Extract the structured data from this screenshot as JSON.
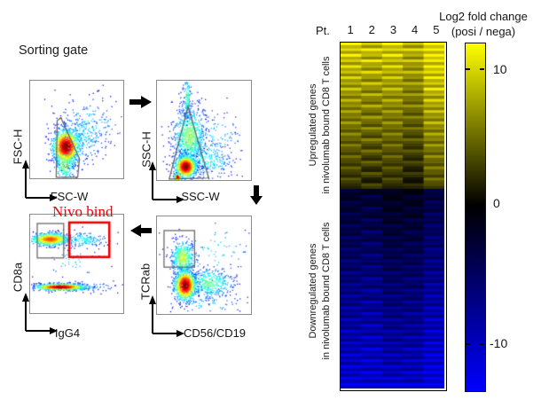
{
  "figure": {
    "title": "Sorting gate",
    "flow_panel": {
      "plots": [
        {
          "id": "fsc",
          "y_label": "FSC-H",
          "x_label": "FSC-W"
        },
        {
          "id": "ssc",
          "y_label": "SSC-H",
          "x_label": "SSC-W"
        },
        {
          "id": "cd8a",
          "y_label": "CD8a",
          "x_label": "IgG4",
          "gate_annotation": "Nivo bind"
        },
        {
          "id": "tcrab",
          "y_label": "TCRab",
          "x_label": "CD56/CD19"
        }
      ],
      "annotation_color": "#ee0000"
    },
    "heatmap_panel": {
      "patient_header": "Pt.",
      "columns": [
        "1",
        "2",
        "3",
        "4",
        "5"
      ],
      "groups": [
        {
          "label_line1": "Upregulated genes",
          "label_line2": "in nivolumab bound CD8 T cells"
        },
        {
          "label_line1": "Downregulated genes",
          "label_line2": "in nivolumab bound CD8 T cells"
        }
      ],
      "colorbar": {
        "title_line1": "Log2 fold change",
        "title_line2": "(posi / nega)",
        "tick_labels": [
          "10",
          "0",
          "-10"
        ],
        "tick_values": [
          10,
          0,
          -10
        ],
        "max_color": "#ffff00",
        "zero_color": "#000000",
        "min_color": "#0000ff"
      }
    }
  },
  "chart_data": [
    {
      "type": "heatmap",
      "title": "Log2 fold change (posi / nega)",
      "columns": [
        "Pt.1",
        "Pt.2",
        "Pt.3",
        "Pt.4",
        "Pt.5"
      ],
      "value_scale": {
        "vmin": -13.2,
        "vmax": 12.5,
        "tick_values": [
          10,
          0,
          -10
        ],
        "colormap": "blue-black-yellow"
      },
      "row_groups": [
        {
          "name": "Upregulated genes in nivolumab bound CD8 T cells",
          "values": [
            [
              11.7,
              9.2,
              11.6,
              8.7,
              12.5
            ],
            [
              9.9,
              11.3,
              9.8,
              10.1,
              11.3
            ],
            [
              11.0,
              8.5,
              10.9,
              8.0,
              12.5
            ],
            [
              9.2,
              10.6,
              9.1,
              9.4,
              10.6
            ],
            [
              10.4,
              7.9,
              10.3,
              7.4,
              11.9
            ],
            [
              8.6,
              10.0,
              8.5,
              8.8,
              10.0
            ],
            [
              9.7,
              7.2,
              9.6,
              6.7,
              11.2
            ],
            [
              7.9,
              9.3,
              7.8,
              8.1,
              9.3
            ],
            [
              9.1,
              6.6,
              9.0,
              6.1,
              10.6
            ],
            [
              7.2,
              8.6,
              7.1,
              7.4,
              8.6
            ],
            [
              8.4,
              5.9,
              8.3,
              5.4,
              9.9
            ],
            [
              6.6,
              8.0,
              6.5,
              6.8,
              8.0
            ],
            [
              7.7,
              5.2,
              7.6,
              4.7,
              9.2
            ],
            [
              5.9,
              7.3,
              5.8,
              6.1,
              7.3
            ],
            [
              7.1,
              4.6,
              7.0,
              4.1,
              8.6
            ],
            [
              5.3,
              6.7,
              5.2,
              5.5,
              6.7
            ],
            [
              6.4,
              3.9,
              6.3,
              3.4,
              7.9
            ],
            [
              4.6,
              6.0,
              4.5,
              4.8,
              6.0
            ],
            [
              5.8,
              3.3,
              5.7,
              2.8,
              7.3
            ],
            [
              3.9,
              5.3,
              3.8,
              4.1,
              5.3
            ],
            [
              5.1,
              2.6,
              5.0,
              2.1,
              6.6
            ],
            [
              3.3,
              4.7,
              3.2,
              3.5,
              4.7
            ],
            [
              4.4,
              1.9,
              4.3,
              1.4,
              5.9
            ],
            [
              2.6,
              4.0,
              2.5,
              2.8,
              4.0
            ],
            [
              3.8,
              1.3,
              3.7,
              0.8,
              5.3
            ],
            [
              2.0,
              3.4,
              1.9,
              2.2,
              3.4
            ]
          ]
        },
        {
          "name": "Downregulated genes in nivolumab bound CD8 T cells",
          "values": [
            [
              -2.9,
              -1.5,
              -1.9,
              -0.6,
              -4.1
            ],
            [
              -1.8,
              -3.9,
              -0.8,
              -2.5,
              -3.0
            ],
            [
              -3.5,
              -2.1,
              -2.5,
              -1.2,
              -4.7
            ],
            [
              -2.3,
              -4.4,
              -1.3,
              -3.0,
              -3.5
            ],
            [
              -4.0,
              -2.6,
              -3.0,
              -1.7,
              -5.2
            ],
            [
              -2.9,
              -5.0,
              -1.9,
              -3.6,
              -4.1
            ],
            [
              -4.6,
              -3.2,
              -3.6,
              -2.3,
              -5.8
            ],
            [
              -3.5,
              -5.6,
              -2.5,
              -4.2,
              -4.7
            ],
            [
              -5.1,
              -3.7,
              -4.1,
              -2.8,
              -6.3
            ],
            [
              -4.0,
              -6.1,
              -3.0,
              -4.7,
              -5.2
            ],
            [
              -5.7,
              -4.3,
              -4.7,
              -3.4,
              -6.9
            ],
            [
              -4.6,
              -6.7,
              -3.6,
              -5.3,
              -5.8
            ],
            [
              -6.3,
              -4.9,
              -5.3,
              -4.0,
              -7.5
            ],
            [
              -5.1,
              -7.2,
              -4.1,
              -5.8,
              -6.3
            ],
            [
              -6.8,
              -5.4,
              -5.8,
              -4.5,
              -8.0
            ],
            [
              -5.7,
              -7.8,
              -4.7,
              -6.4,
              -6.9
            ],
            [
              -7.4,
              -6.0,
              -6.4,
              -5.1,
              -8.6
            ],
            [
              -6.3,
              -8.4,
              -5.3,
              -7.0,
              -7.5
            ],
            [
              -7.9,
              -6.5,
              -6.9,
              -5.6,
              -9.1
            ],
            [
              -6.8,
              -8.9,
              -5.8,
              -7.5,
              -8.0
            ],
            [
              -8.5,
              -7.1,
              -7.5,
              -6.2,
              -9.7
            ],
            [
              -7.4,
              -9.5,
              -6.4,
              -8.1,
              -8.6
            ],
            [
              -9.1,
              -7.7,
              -8.1,
              -6.8,
              -10.3
            ],
            [
              -7.9,
              -10.0,
              -6.9,
              -8.6,
              -9.1
            ],
            [
              -9.6,
              -8.2,
              -8.6,
              -7.3,
              -10.8
            ],
            [
              -8.5,
              -10.6,
              -7.5,
              -9.2,
              -9.7
            ],
            [
              -10.2,
              -8.8,
              -9.2,
              -7.9,
              -11.4
            ],
            [
              -9.1,
              -11.2,
              -8.1,
              -9.8,
              -10.3
            ],
            [
              -10.7,
              -9.3,
              -9.7,
              -8.4,
              -11.9
            ],
            [
              -9.6,
              -11.7,
              -8.6,
              -10.3,
              -10.8
            ],
            [
              -11.3,
              -9.9,
              -10.3,
              -9.0,
              -12.5
            ],
            [
              -10.2,
              -12.3,
              -9.2,
              -10.9,
              -11.4
            ],
            [
              -11.9,
              -10.5,
              -10.9,
              -9.6,
              -12.9
            ],
            [
              -12.3,
              -11.8,
              -12.6,
              -12.0,
              -13.2
            ]
          ]
        }
      ]
    },
    {
      "type": "scatter",
      "subtype": "flow-cytometry-density",
      "plots": [
        {
          "id": "fsc",
          "x_label": "FSC-W",
          "y_label": "FSC-H",
          "gate_polygon": [
            [
              0.28,
              0.99
            ],
            [
              0.29,
              0.41
            ],
            [
              0.33,
              0.38
            ],
            [
              0.53,
              0.8
            ],
            [
              0.51,
              0.99
            ]
          ],
          "clusters": [
            {
              "cx": 0.62,
              "cy": 0.45,
              "sx": 0.18,
              "sy": 0.13,
              "n": 180,
              "cap": 0.3
            },
            {
              "cx": 0.5,
              "cy": 0.6,
              "sx": 0.14,
              "sy": 0.12,
              "n": 260,
              "cap": 0.35
            },
            {
              "cx": 0.37,
              "cy": 0.84,
              "sx": 0.055,
              "sy": 0.09,
              "n": 320,
              "cap": 0.55
            },
            {
              "cx": 0.38,
              "cy": 0.67,
              "sx": 0.07,
              "sy": 0.085,
              "n": 1000,
              "cap": 1
            }
          ]
        },
        {
          "id": "ssc",
          "x_label": "SSC-W",
          "y_label": "SSC-H",
          "gate_polygon": [
            [
              0.33,
              0.26
            ],
            [
              0.13,
              0.99
            ],
            [
              0.55,
              0.98
            ]
          ],
          "clusters": [
            {
              "cx": 0.55,
              "cy": 0.6,
              "sx": 0.2,
              "sy": 0.17,
              "n": 130,
              "cap": 0.3
            },
            {
              "cx": 0.52,
              "cy": 0.8,
              "sx": 0.14,
              "sy": 0.1,
              "n": 300,
              "cap": 0.35
            },
            {
              "cx": 0.34,
              "cy": 0.56,
              "sx": 0.085,
              "sy": 0.16,
              "n": 850,
              "cap": 0.5
            },
            {
              "cx": 0.315,
              "cy": 0.16,
              "sx": 0.02,
              "sy": 0.11,
              "n": 130,
              "cap": 0.45
            },
            {
              "cx": 0.3,
              "cy": 0.86,
              "sx": 0.055,
              "sy": 0.055,
              "n": 900,
              "cap": 1
            },
            {
              "cx": 0.215,
              "cy": 0.965,
              "sx": 0.018,
              "sy": 0.018,
              "n": 140,
              "cap": 1
            }
          ]
        },
        {
          "id": "cd8a",
          "x_label": "IgG4",
          "y_label": "CD8a",
          "gate_rects": [
            {
              "x0": 0.076,
              "y0": 0.09,
              "x1": 0.36,
              "y1": 0.44,
              "color": "gray"
            },
            {
              "x0": 0.42,
              "y0": 0.08,
              "x1": 0.85,
              "y1": 0.43,
              "color": "red"
            }
          ],
          "clusters": [
            {
              "cx": 0.45,
              "cy": 0.47,
              "sx": 0.15,
              "sy": 0.09,
              "n": 40,
              "cap": 0.3
            },
            {
              "cx": 0.55,
              "cy": 0.25,
              "sx": 0.13,
              "sy": 0.04,
              "n": 170,
              "cap": 0.35
            },
            {
              "cx": 0.5,
              "cy": 0.73,
              "sx": 0.22,
              "sy": 0.025,
              "n": 160,
              "cap": 0.3
            },
            {
              "cx": 0.21,
              "cy": 0.245,
              "sx": 0.1,
              "sy": 0.032,
              "n": 700,
              "cap": 0.8
            },
            {
              "cx": 0.32,
              "cy": 0.73,
              "sx": 0.13,
              "sy": 0.016,
              "n": 900,
              "cap": 1
            }
          ]
        },
        {
          "id": "tcrab",
          "x_label": "CD56/CD19",
          "y_label": "TCRab",
          "gate_rects": [
            {
              "x0": 0.075,
              "y0": 0.145,
              "x1": 0.4,
              "y1": 0.52,
              "color": "gray"
            }
          ],
          "clusters": [
            {
              "cx": 0.6,
              "cy": 0.35,
              "sx": 0.22,
              "sy": 0.17,
              "n": 90,
              "cap": 0.3
            },
            {
              "cx": 0.5,
              "cy": 0.88,
              "sx": 0.2,
              "sy": 0.06,
              "n": 80,
              "cap": 0.3
            },
            {
              "cx": 0.55,
              "cy": 0.68,
              "sx": 0.13,
              "sy": 0.075,
              "n": 420,
              "cap": 0.45
            },
            {
              "cx": 0.27,
              "cy": 0.42,
              "sx": 0.06,
              "sy": 0.09,
              "n": 520,
              "cap": 0.55
            },
            {
              "cx": 0.295,
              "cy": 0.7,
              "sx": 0.055,
              "sy": 0.075,
              "n": 1000,
              "cap": 1
            }
          ]
        }
      ]
    }
  ]
}
